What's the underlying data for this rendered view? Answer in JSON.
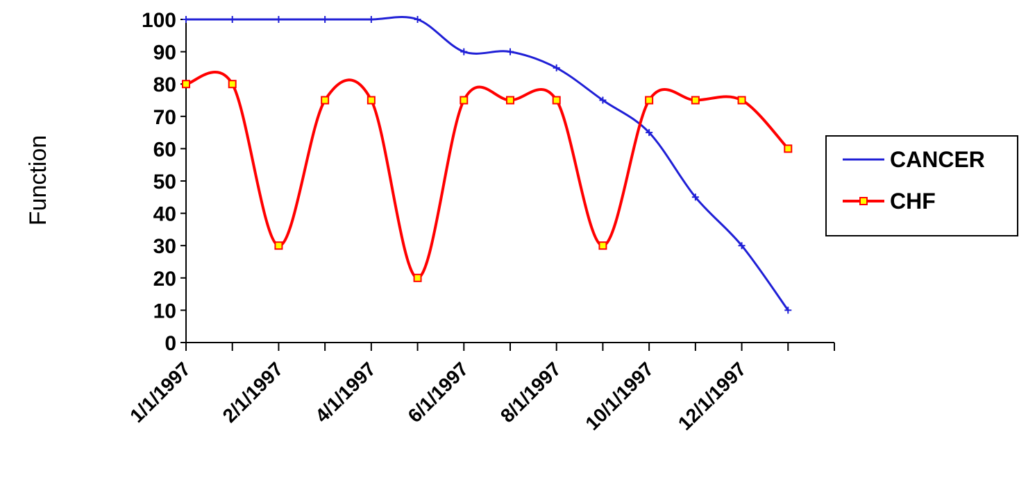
{
  "chart_data": {
    "type": "line",
    "title": "",
    "xlabel": "",
    "ylabel": "Function",
    "ylim": [
      0,
      100
    ],
    "yticks": [
      "0",
      "10",
      "20",
      "30",
      "40",
      "50",
      "60",
      "70",
      "80",
      "90",
      "100"
    ],
    "x_tick_labels": [
      "1/1/1997",
      "2/1/1997",
      "4/1/1997",
      "6/1/1997",
      "8/1/1997",
      "10/1/1997",
      "12/1/1997"
    ],
    "x_tick_label_positions": [
      0,
      2,
      4,
      6,
      8,
      10,
      12
    ],
    "categories_count": 14,
    "x_index": [
      0,
      1,
      2,
      3,
      4,
      5,
      6,
      7,
      8,
      9,
      10,
      11,
      12,
      13
    ],
    "grid": false,
    "legend_position": "right",
    "series": [
      {
        "name": "CANCER",
        "color": "#1f1fd6",
        "marker": "plus",
        "values": [
          100,
          100,
          100,
          100,
          100,
          100,
          90,
          90,
          85,
          75,
          65,
          45,
          30,
          10
        ]
      },
      {
        "name": "CHF",
        "color": "#ff0000",
        "marker": "square",
        "marker_fill": "#ffff00",
        "values": [
          80,
          80,
          30,
          75,
          75,
          20,
          75,
          75,
          75,
          30,
          75,
          75,
          75,
          60
        ]
      }
    ]
  }
}
